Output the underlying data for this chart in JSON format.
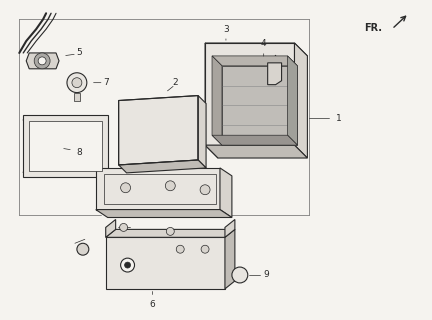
{
  "bg_color": "#f5f3ef",
  "line_color": "#2a2a2a",
  "fill_light": "#e8e5e0",
  "fill_mid": "#d8d4ce",
  "fill_dark": "#c0bcb6",
  "fr_text": "FR.",
  "label_fontsize": 6.5,
  "lw_main": 0.8,
  "lw_thin": 0.5,
  "lw_heavy": 1.1
}
